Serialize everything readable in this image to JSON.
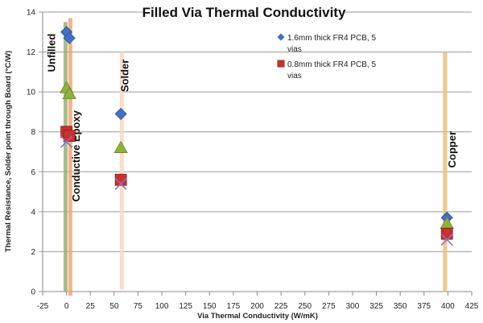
{
  "chart_data": {
    "type": "scatter",
    "title": "Filled Via Thermal Conductivity",
    "xlabel": "Via Thermal Conductivity (W/mK)",
    "ylabel": "Thermal Resistance, Solder point through Board (°C/W)",
    "xlim": [
      -25,
      425
    ],
    "ylim": [
      0,
      14
    ],
    "xticks": [
      "-25",
      "0",
      "25",
      "50",
      "75",
      "100",
      "125",
      "150",
      "175",
      "200",
      "225",
      "250",
      "275",
      "300",
      "325",
      "350",
      "375",
      "400",
      "425"
    ],
    "yticks": [
      "0",
      "2",
      "4",
      "6",
      "8",
      "10",
      "12",
      "14"
    ],
    "grid": "horizontal",
    "legend_placement": "top-right",
    "series": [
      {
        "name": "1.6mm thick FR4 PCB, 5 vias",
        "marker": "diamond",
        "color": "#3f72c4",
        "x": [
          0,
          3,
          57,
          399
        ],
        "y": [
          13.0,
          12.7,
          8.9,
          3.7
        ]
      },
      {
        "marker": "triangle",
        "color": "#8db33a",
        "x": [
          0,
          3,
          57,
          399
        ],
        "y": [
          10.2,
          9.9,
          7.2,
          3.4
        ]
      },
      {
        "name": "0.8mm thick FR4 PCB, 5 vias",
        "marker": "square",
        "color": "#c8312c",
        "x": [
          0,
          3,
          57,
          399
        ],
        "y": [
          8.0,
          7.8,
          5.6,
          2.9
        ]
      },
      {
        "marker": "x",
        "color": "#8f6fc0",
        "x": [
          0,
          57,
          399
        ],
        "y": [
          7.5,
          5.4,
          2.6
        ]
      }
    ],
    "bands": [
      {
        "x": -1,
        "y": [
          0,
          13.5
        ],
        "color": "#9ab27a"
      },
      {
        "x": 4,
        "y": [
          -0.2,
          13.7
        ],
        "color": "#f2a878"
      },
      {
        "x": 58,
        "y": [
          0.1,
          12
        ],
        "color": "#fbd8c2"
      },
      {
        "x": 397,
        "y": [
          0,
          12
        ],
        "color": "#edc079"
      }
    ],
    "annotations": [
      {
        "text": "Unfilled",
        "x": -12,
        "y": 11.0
      },
      {
        "text": "Solder",
        "x": 65,
        "y": 10.0
      },
      {
        "text": "Conductive Epoxy",
        "x": 14,
        "y": 4.5
      },
      {
        "text": "Copper",
        "x": 408,
        "y": 6.2
      }
    ]
  }
}
